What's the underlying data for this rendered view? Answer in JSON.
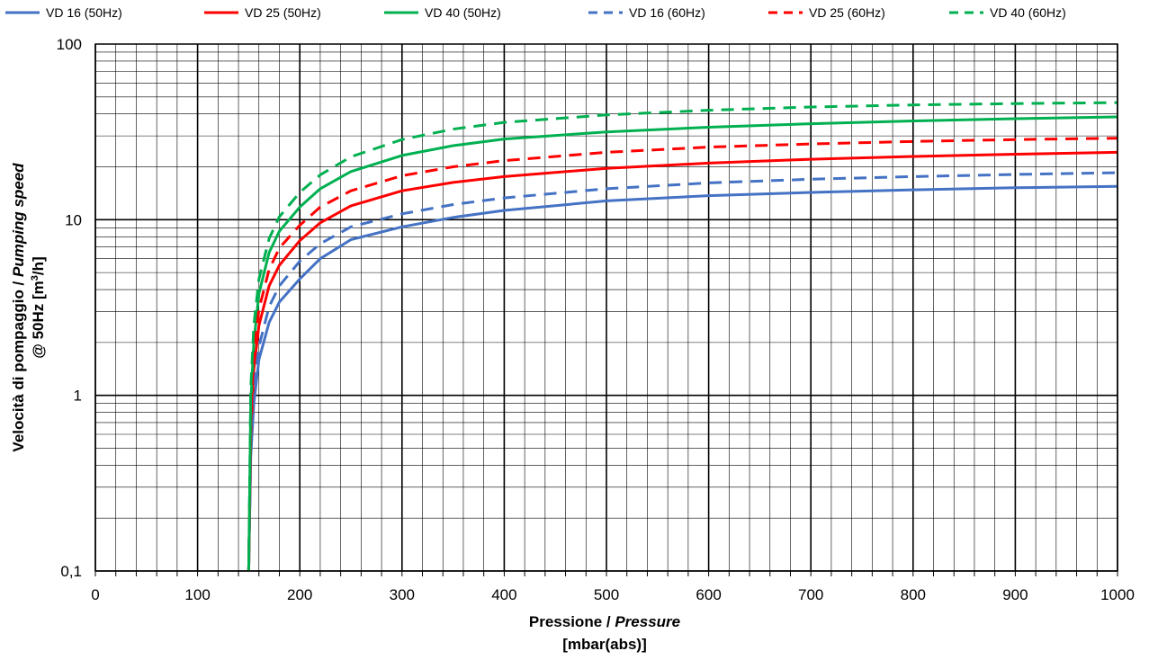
{
  "chart_data": {
    "type": "line",
    "xlabel": {
      "normal": "Pressione / ",
      "italic": "Pressure",
      "unit": "[mbar(abs)]"
    },
    "ylabel": {
      "line1_normal": "Velocità di pompaggio / ",
      "line1_italic": "Pumping speed",
      "line2_pre": "@ 50Hz [m",
      "line2_sup": "3",
      "line2_post": "/h]"
    },
    "xlim": [
      0,
      1000
    ],
    "ylim": [
      0.1,
      100
    ],
    "y_scale": "log",
    "grid": true,
    "legend_position": "top",
    "x_ticks": [
      "0",
      "100",
      "200",
      "300",
      "400",
      "500",
      "600",
      "700",
      "800",
      "900",
      "1000"
    ],
    "y_ticks": [
      "0,1",
      "1",
      "10",
      "100"
    ],
    "x": [
      150,
      152,
      155,
      160,
      170,
      180,
      200,
      220,
      250,
      300,
      350,
      400,
      500,
      600,
      700,
      800,
      900,
      1000
    ],
    "series": [
      {
        "name": "VD 16 (50Hz)",
        "color": "#4472C4",
        "dash": false,
        "values": [
          0.1,
          0.45,
          0.9,
          1.6,
          2.6,
          3.4,
          4.6,
          6.0,
          7.7,
          9.1,
          10.3,
          11.3,
          12.8,
          13.7,
          14.3,
          14.8,
          15.2,
          15.5
        ]
      },
      {
        "name": "VD 25 (50Hz)",
        "color": "#FF0000",
        "dash": false,
        "values": [
          0.1,
          0.6,
          1.4,
          2.5,
          4.2,
          5.5,
          7.6,
          9.6,
          12.0,
          14.6,
          16.3,
          17.6,
          19.6,
          21.0,
          22.1,
          22.9,
          23.6,
          24.2
        ]
      },
      {
        "name": "VD 40 (50Hz)",
        "color": "#00B050",
        "dash": false,
        "values": [
          0.1,
          0.9,
          2.0,
          3.8,
          6.5,
          8.6,
          11.8,
          15.0,
          18.8,
          23.2,
          26.4,
          28.8,
          31.6,
          33.6,
          35.2,
          36.5,
          37.6,
          38.5
        ]
      },
      {
        "name": "VD 16 (60Hz)",
        "color": "#4472C4",
        "dash": true,
        "values": [
          0.1,
          0.5,
          1.1,
          1.9,
          3.2,
          4.2,
          5.8,
          7.3,
          9.1,
          10.8,
          12.2,
          13.3,
          15.0,
          16.2,
          17.0,
          17.6,
          18.1,
          18.5
        ]
      },
      {
        "name": "VD 25 (60Hz)",
        "color": "#FF0000",
        "dash": true,
        "values": [
          0.1,
          0.7,
          1.7,
          3.1,
          5.2,
          6.9,
          9.3,
          11.8,
          14.6,
          17.8,
          20.0,
          21.7,
          24.2,
          25.9,
          27.0,
          27.9,
          28.6,
          29.1
        ]
      },
      {
        "name": "VD 40 (60Hz)",
        "color": "#00B050",
        "dash": true,
        "values": [
          0.1,
          1.1,
          2.5,
          4.6,
          7.8,
          10.4,
          14.3,
          18.0,
          22.8,
          28.6,
          32.8,
          35.8,
          39.5,
          42.0,
          43.8,
          45.0,
          45.8,
          46.4
        ]
      }
    ]
  }
}
